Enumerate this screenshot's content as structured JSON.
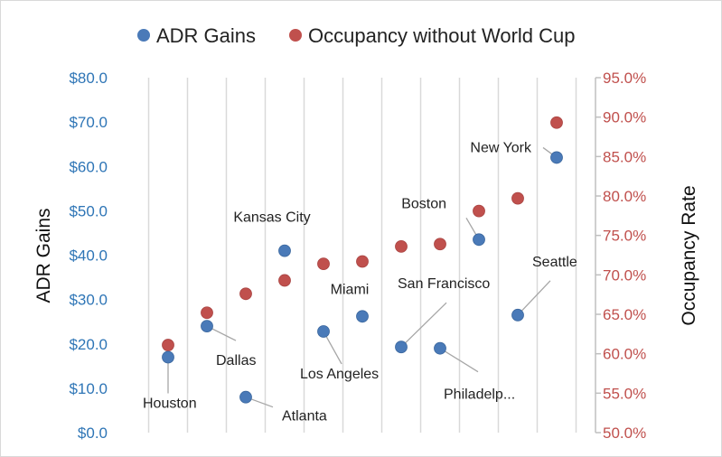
{
  "chart_data": {
    "type": "scatter",
    "legend": {
      "position": "top",
      "items": [
        {
          "name": "ADR Gains",
          "color": "#4a7ab8"
        },
        {
          "name": "Occupancy without World Cup",
          "color": "#c0504d"
        }
      ]
    },
    "axes": {
      "y_left": {
        "label": "ADR Gains",
        "range": [
          0,
          80
        ],
        "ticks": [
          "$0.0",
          "$10.0",
          "$20.0",
          "$30.0",
          "$40.0",
          "$50.0",
          "$60.0",
          "$70.0",
          "$80.0"
        ],
        "color": "#2e75b6"
      },
      "y_right": {
        "label": "Occupancy Rate",
        "range": [
          50,
          95
        ],
        "ticks": [
          "50.0%",
          "55.0%",
          "60.0%",
          "65.0%",
          "70.0%",
          "75.0%",
          "80.0%",
          "85.0%",
          "90.0%",
          "95.0%"
        ],
        "color": "#c0504d"
      },
      "x": {
        "label": "",
        "categories": 11,
        "grid": "vertical"
      }
    },
    "series": [
      {
        "name": "ADR Gains",
        "axis": "left",
        "color": "#4a7ab8",
        "points": [
          {
            "x": 1,
            "y": 17.0,
            "label": "Houston"
          },
          {
            "x": 2,
            "y": 24.0,
            "label": "Dallas"
          },
          {
            "x": 3,
            "y": 8.0,
            "label": "Atlanta"
          },
          {
            "x": 4,
            "y": 41.0,
            "label": "Kansas City"
          },
          {
            "x": 5,
            "y": 22.8,
            "label": "Los Angeles"
          },
          {
            "x": 6,
            "y": 26.2,
            "label": "Miami"
          },
          {
            "x": 7,
            "y": 19.3,
            "label": "San Francisco"
          },
          {
            "x": 8,
            "y": 19.0,
            "label": "Philadelp..."
          },
          {
            "x": 9,
            "y": 43.5,
            "label": "Boston"
          },
          {
            "x": 10,
            "y": 26.5,
            "label": "Seattle"
          },
          {
            "x": 11,
            "y": 62.0,
            "label": "New York"
          }
        ]
      },
      {
        "name": "Occupancy without World Cup",
        "axis": "right",
        "color": "#c0504d",
        "points": [
          {
            "x": 1,
            "y": 61.1
          },
          {
            "x": 2,
            "y": 65.2
          },
          {
            "x": 3,
            "y": 67.6
          },
          {
            "x": 4,
            "y": 69.3
          },
          {
            "x": 5,
            "y": 71.4
          },
          {
            "x": 6,
            "y": 71.7
          },
          {
            "x": 7,
            "y": 73.6
          },
          {
            "x": 8,
            "y": 73.9
          },
          {
            "x": 9,
            "y": 78.1
          },
          {
            "x": 10,
            "y": 79.7
          },
          {
            "x": 11,
            "y": 89.3
          }
        ]
      }
    ]
  }
}
